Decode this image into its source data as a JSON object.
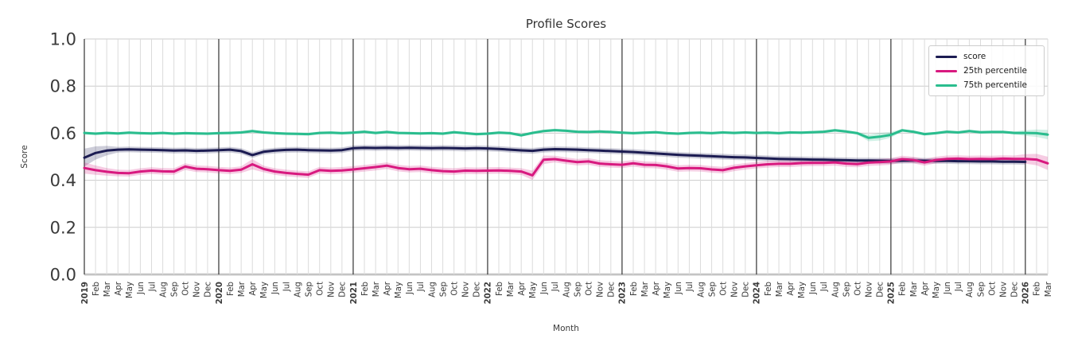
{
  "chart_data": {
    "type": "line",
    "title": "Profile Scores",
    "xlabel": "Month",
    "ylabel": "Score",
    "ylim": [
      0.0,
      1.0
    ],
    "yticks": [
      0.0,
      0.2,
      0.4,
      0.6,
      0.8,
      1.0
    ],
    "grid": true,
    "legend_position": "upper right",
    "colors": {
      "grid_minor": "#dbdbdb",
      "grid_major": "#cbcbcb",
      "grid_baseline": "#c4c4c4",
      "year_line": "#333333",
      "tick_text": "#3a3a3a",
      "title_text": "#333333"
    },
    "x_labels": [
      "2019",
      "Feb",
      "Mar",
      "Apr",
      "May",
      "Jun",
      "Jul",
      "Aug",
      "Sep",
      "Oct",
      "Nov",
      "Dec",
      "2020",
      "Feb",
      "Mar",
      "Apr",
      "May",
      "Jun",
      "Jul",
      "Aug",
      "Sep",
      "Oct",
      "Nov",
      "Dec",
      "2021",
      "Feb",
      "Mar",
      "Apr",
      "May",
      "Jun",
      "Jul",
      "Aug",
      "Sep",
      "Oct",
      "Nov",
      "Dec",
      "2022",
      "Feb",
      "Mar",
      "Apr",
      "May",
      "Jun",
      "Jul",
      "Aug",
      "Sep",
      "Oct",
      "Nov",
      "Dec",
      "2023",
      "Feb",
      "Mar",
      "Apr",
      "May",
      "Jun",
      "Jul",
      "Aug",
      "Sep",
      "Oct",
      "Nov",
      "Dec",
      "2024",
      "Feb",
      "Mar",
      "Apr",
      "May",
      "Jun",
      "Jul",
      "Aug",
      "Sep",
      "Oct",
      "Nov",
      "Dec",
      "2025",
      "Feb",
      "Mar",
      "Apr",
      "May",
      "Jun",
      "Jul",
      "Aug",
      "Sep",
      "Oct",
      "Nov",
      "Dec",
      "2026",
      "Feb",
      "Mar"
    ],
    "series": [
      {
        "name": "score",
        "color": "#1c1c52",
        "band": 0.012,
        "band_start": [
          0.038,
          0.028,
          0.02
        ],
        "values": [
          0.496,
          0.516,
          0.526,
          0.53,
          0.531,
          0.53,
          0.529,
          0.528,
          0.526,
          0.527,
          0.525,
          0.526,
          0.528,
          0.53,
          0.524,
          0.507,
          0.521,
          0.526,
          0.529,
          0.53,
          0.528,
          0.527,
          0.526,
          0.528,
          0.536,
          0.538,
          0.537,
          0.538,
          0.537,
          0.538,
          0.537,
          0.536,
          0.537,
          0.536,
          0.535,
          0.536,
          0.535,
          0.533,
          0.53,
          0.527,
          0.525,
          0.53,
          0.532,
          0.531,
          0.53,
          0.528,
          0.526,
          0.524,
          0.522,
          0.52,
          0.517,
          0.514,
          0.511,
          0.508,
          0.506,
          0.504,
          0.502,
          0.5,
          0.498,
          0.497,
          0.495,
          0.493,
          0.491,
          0.49,
          0.489,
          0.488,
          0.487,
          0.486,
          0.485,
          0.484,
          0.484,
          0.483,
          0.482,
          0.483,
          0.484,
          0.483,
          0.482,
          0.482,
          0.481,
          0.481,
          0.48,
          0.48,
          0.479,
          0.479,
          0.478,
          null,
          null
        ]
      },
      {
        "name": "25th percentile",
        "color": "#d8197f",
        "band": 0.014,
        "band_start": [
          0.024,
          0.02,
          0.016
        ],
        "band_end": [
          0.02,
          0.024,
          0.028
        ],
        "band_overrides": {
          "15": 0.022,
          "40": 0.02,
          "41": 0.018
        },
        "values": [
          0.452,
          0.443,
          0.436,
          0.431,
          0.43,
          0.437,
          0.441,
          0.438,
          0.437,
          0.458,
          0.449,
          0.447,
          0.443,
          0.44,
          0.445,
          0.468,
          0.448,
          0.437,
          0.431,
          0.427,
          0.424,
          0.443,
          0.44,
          0.442,
          0.446,
          0.451,
          0.456,
          0.462,
          0.452,
          0.447,
          0.449,
          0.443,
          0.439,
          0.437,
          0.441,
          0.44,
          0.441,
          0.442,
          0.44,
          0.437,
          0.421,
          0.487,
          0.49,
          0.483,
          0.477,
          0.48,
          0.471,
          0.468,
          0.466,
          0.472,
          0.466,
          0.465,
          0.459,
          0.45,
          0.452,
          0.451,
          0.446,
          0.443,
          0.453,
          0.459,
          0.464,
          0.468,
          0.47,
          0.47,
          0.473,
          0.474,
          0.474,
          0.476,
          0.471,
          0.469,
          0.475,
          0.477,
          0.48,
          0.49,
          0.486,
          0.476,
          0.486,
          0.491,
          0.492,
          0.49,
          0.491,
          0.49,
          0.492,
          0.491,
          0.491,
          0.488,
          0.472
        ]
      },
      {
        "name": "75th percentile",
        "color": "#2abd8e",
        "band": 0.006,
        "band_end": [
          0.012,
          0.016,
          0.02
        ],
        "band_overrides": {
          "70": 0.014,
          "71": 0.016,
          "72": 0.012
        },
        "values": [
          0.601,
          0.598,
          0.601,
          0.599,
          0.602,
          0.6,
          0.599,
          0.601,
          0.598,
          0.6,
          0.599,
          0.598,
          0.6,
          0.601,
          0.603,
          0.609,
          0.603,
          0.6,
          0.598,
          0.597,
          0.596,
          0.601,
          0.602,
          0.6,
          0.602,
          0.606,
          0.601,
          0.605,
          0.601,
          0.6,
          0.599,
          0.6,
          0.598,
          0.604,
          0.6,
          0.596,
          0.598,
          0.602,
          0.6,
          0.591,
          0.601,
          0.609,
          0.613,
          0.61,
          0.606,
          0.605,
          0.607,
          0.605,
          0.602,
          0.6,
          0.602,
          0.604,
          0.6,
          0.598,
          0.601,
          0.602,
          0.6,
          0.603,
          0.601,
          0.603,
          0.601,
          0.602,
          0.6,
          0.603,
          0.602,
          0.604,
          0.606,
          0.612,
          0.607,
          0.6,
          0.58,
          0.585,
          0.593,
          0.612,
          0.606,
          0.596,
          0.6,
          0.606,
          0.603,
          0.609,
          0.604,
          0.605,
          0.605,
          0.601,
          0.601,
          0.6,
          0.594
        ]
      }
    ]
  }
}
